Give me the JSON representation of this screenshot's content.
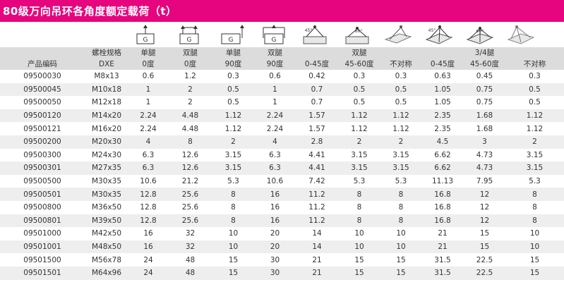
{
  "title": "80级万向吊环各角度额定载荷（t）",
  "icons": [
    {
      "name": "single-leg-0-icon",
      "label": "G"
    },
    {
      "name": "double-leg-0-icon",
      "label": "G"
    },
    {
      "name": "single-leg-90-icon",
      "label": "G"
    },
    {
      "name": "double-leg-90-icon",
      "label": "G"
    },
    {
      "name": "double-leg-0-45-icon",
      "label": "45°"
    },
    {
      "name": "double-leg-45-60-icon",
      "label": "60°"
    },
    {
      "name": "double-leg-asym-icon",
      "label": ""
    },
    {
      "name": "three-four-leg-0-45-icon",
      "label": "45°"
    },
    {
      "name": "three-four-leg-45-60-icon",
      "label": "60°"
    },
    {
      "name": "three-four-leg-asym-icon",
      "label": ""
    }
  ],
  "header": {
    "row1": [
      "",
      "螺栓规格",
      "单腿",
      "双腿",
      "单腿",
      "双腿",
      "",
      "双腿",
      "",
      "",
      "3/4腿",
      ""
    ],
    "row2": [
      "产品编码",
      "DXE",
      "0度",
      "0度",
      "90度",
      "90度",
      "0-45度",
      "45-60度",
      "不对称",
      "0-45度",
      "45-60度",
      "不对称"
    ]
  },
  "rows": [
    [
      "09500030",
      "M8x13",
      "0.6",
      "1.2",
      "0.3",
      "0.6",
      "0.42",
      "0.3",
      "0.3",
      "0.63",
      "0.45",
      "0.3"
    ],
    [
      "09500045",
      "M10x18",
      "1",
      "2",
      "0.5",
      "1",
      "0.7",
      "0.5",
      "0.5",
      "1.05",
      "0.75",
      "0.5"
    ],
    [
      "09500050",
      "M12x18",
      "1",
      "2",
      "0.5",
      "1",
      "0.7",
      "0.5",
      "0.5",
      "1.05",
      "0.75",
      "0.5"
    ],
    [
      "09500120",
      "M14x20",
      "2.24",
      "4.48",
      "1.12",
      "2.24",
      "1.57",
      "1.12",
      "1.12",
      "2.35",
      "1.68",
      "1.12"
    ],
    [
      "09500121",
      "M16x20",
      "2.24",
      "4.48",
      "1.12",
      "2.24",
      "1.57",
      "1.12",
      "1.12",
      "2.35",
      "1.68",
      "1.12"
    ],
    [
      "09500200",
      "M20x30",
      "4",
      "8",
      "2",
      "4",
      "2.8",
      "2",
      "2",
      "4.5",
      "3",
      "2"
    ],
    [
      "09500300",
      "M24x30",
      "6.3",
      "12.6",
      "3.15",
      "6.3",
      "4.41",
      "3.15",
      "3.15",
      "6.62",
      "4.73",
      "3.15"
    ],
    [
      "09500301",
      "M27x35",
      "6.3",
      "12.6",
      "3.15",
      "6.3",
      "4.41",
      "3.15",
      "3.15",
      "6.62",
      "4.73",
      "3.15"
    ],
    [
      "09500500",
      "M30x35",
      "10.6",
      "21.2",
      "5.3",
      "10.6",
      "7.42",
      "5.3",
      "5.3",
      "11.13",
      "7.95",
      "5.3"
    ],
    [
      "09500501",
      "M30x35",
      "12.8",
      "25.6",
      "8",
      "16",
      "11.2",
      "8",
      "8",
      "16.8",
      "12",
      "8"
    ],
    [
      "09500800",
      "M36x50",
      "12.8",
      "25.6",
      "8",
      "16",
      "11.2",
      "8",
      "8",
      "16.8",
      "12",
      "8"
    ],
    [
      "09500801",
      "M39x50",
      "12.8",
      "25.6",
      "8",
      "16",
      "11.2",
      "8",
      "8",
      "16.8",
      "12",
      "8"
    ],
    [
      "09501000",
      "M42x50",
      "16",
      "32",
      "10",
      "20",
      "14",
      "10",
      "10",
      "21",
      "15",
      "10"
    ],
    [
      "09501001",
      "M48x50",
      "16",
      "32",
      "10",
      "20",
      "14",
      "10",
      "10",
      "21",
      "15",
      "10"
    ],
    [
      "09501500",
      "M56x78",
      "24",
      "48",
      "15",
      "30",
      "21",
      "15",
      "15",
      "31.5",
      "22.5",
      "15"
    ],
    [
      "09501501",
      "M64x96",
      "24",
      "48",
      "15",
      "30",
      "21",
      "15",
      "15",
      "31.5",
      "22.5",
      "15"
    ]
  ]
}
